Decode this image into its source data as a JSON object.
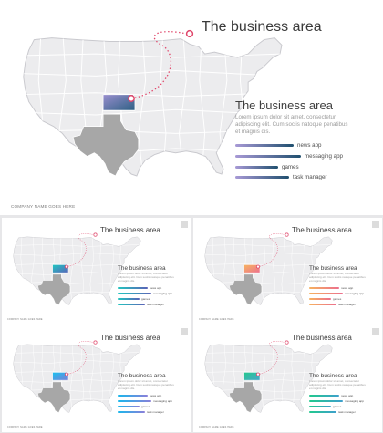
{
  "slides": [
    {
      "title": "The business area",
      "subtitle": "The business area",
      "body": "Lorem ipsum dolor sit amet, consectetur adipiscing elit. Cum sociis natoque penatibus et magnis dis.",
      "items": [
        {
          "label": "news app",
          "value": 0.82
        },
        {
          "label": "messaging app",
          "value": 0.92
        },
        {
          "label": "games",
          "value": 0.6
        },
        {
          "label": "task manager",
          "value": 0.75
        }
      ],
      "company": "COMPANY NAME GOES HERE",
      "highlight_colors": [
        "#9a8fcf",
        "#2d5f83"
      ],
      "bar_colors": [
        "#a89ad6",
        "#1f4f6e"
      ]
    },
    {
      "title": "The business area",
      "subtitle": "The business area",
      "body": "Lorem ipsum dolor sit amet, consectetur adipiscing elit. Cum sociis natoque penatibus et magnis dis.",
      "items": [
        {
          "label": "news app",
          "value": 0.82
        },
        {
          "label": "messaging app",
          "value": 0.92
        },
        {
          "label": "games",
          "value": 0.6
        },
        {
          "label": "task manager",
          "value": 0.75
        }
      ],
      "company": "COMPANY NAME GOES HERE",
      "highlight_colors": [
        "#1fc8c1",
        "#5a63b9"
      ],
      "bar_colors": [
        "#22c6bf",
        "#5b62b7"
      ]
    },
    {
      "title": "The business area",
      "subtitle": "The business area",
      "body": "Lorem ipsum dolor sit amet, consectetur adipiscing elit. Cum sociis natoque penatibus et magnis dis.",
      "items": [
        {
          "label": "news app",
          "value": 0.82
        },
        {
          "label": "messaging app",
          "value": 0.92
        },
        {
          "label": "games",
          "value": 0.6
        },
        {
          "label": "task manager",
          "value": 0.75
        }
      ],
      "company": "COMPANY NAME GOES HERE",
      "highlight_colors": [
        "#f7b560",
        "#ec6f8e"
      ],
      "bar_colors": [
        "#f6b15f",
        "#ec6f8d"
      ]
    },
    {
      "title": "The business area",
      "subtitle": "The business area",
      "body": "Lorem ipsum dolor sit amet, consectetur adipiscing elit. Cum sociis natoque penatibus et magnis dis.",
      "items": [
        {
          "label": "news app",
          "value": 0.82
        },
        {
          "label": "messaging app",
          "value": 0.92
        },
        {
          "label": "games",
          "value": 0.6
        },
        {
          "label": "task manager",
          "value": 0.75
        }
      ],
      "company": "COMPANY NAME GOES HERE",
      "highlight_colors": [
        "#19c1f0",
        "#7b7fd6"
      ],
      "bar_colors": [
        "#17b8ec",
        "#8c7fd9"
      ]
    },
    {
      "title": "The business area",
      "subtitle": "The business area",
      "body": "Lorem ipsum dolor sit amet, consectetur adipiscing elit. Cum sociis natoque penatibus et magnis dis.",
      "items": [
        {
          "label": "news app",
          "value": 0.82
        },
        {
          "label": "messaging app",
          "value": 0.92
        },
        {
          "label": "games",
          "value": 0.6
        },
        {
          "label": "task manager",
          "value": 0.75
        }
      ],
      "company": "COMPANY NAME GOES HERE",
      "highlight_colors": [
        "#24c98e",
        "#4aa6c8"
      ],
      "bar_colors": [
        "#22c98d",
        "#3f9fcd"
      ]
    }
  ],
  "colors": {
    "map_fill": "#ececee",
    "map_stroke": "#c9c9ce",
    "texas_fill": "#a7a7a7",
    "pin": "#e0476b",
    "dotted_line": "#e0476b"
  },
  "icons": {
    "pin": "location-pin-icon",
    "thumb_marker": "square-marker-icon"
  }
}
